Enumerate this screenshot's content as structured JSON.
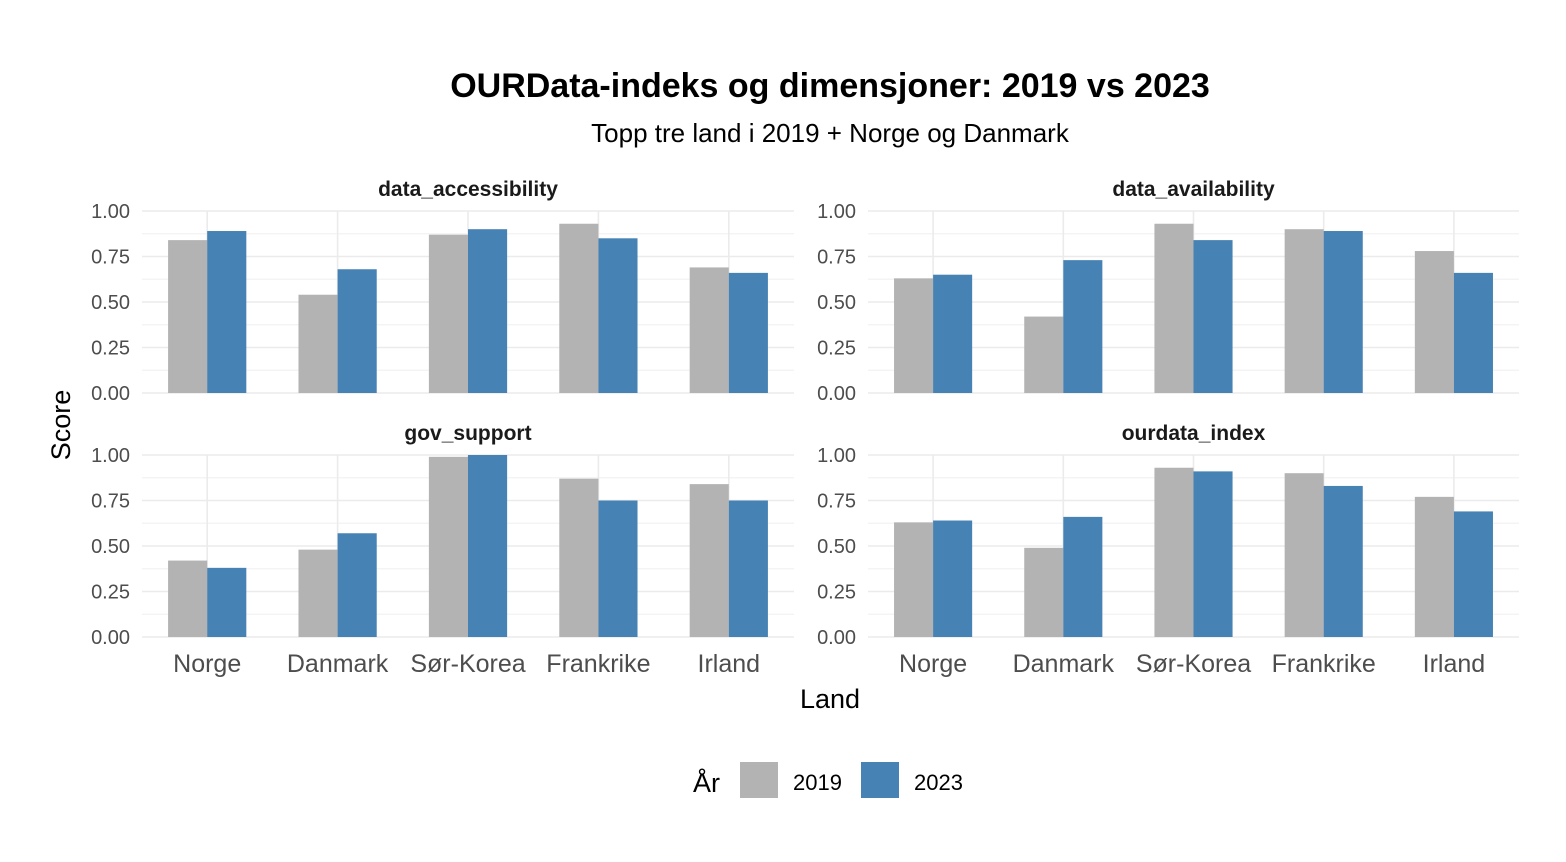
{
  "chart_data": {
    "type": "bar",
    "title": "OURData-indeks og dimensjoner: 2019 vs 2023",
    "subtitle": "Topp tre land i 2019 + Norge og Danmark",
    "xlabel": "Land",
    "ylabel": "Score",
    "ylim": [
      0,
      1
    ],
    "yticks": [
      "0.00",
      "0.25",
      "0.50",
      "0.75",
      "1.00"
    ],
    "categories": [
      "Norge",
      "Danmark",
      "Sør-Korea",
      "Frankrike",
      "Irland"
    ],
    "legend": {
      "title": "År",
      "position": "bottom"
    },
    "colors": {
      "2019": "#b3b3b3",
      "2023": "#4682b4"
    },
    "grid": true,
    "facets": [
      {
        "label": "data_accessibility",
        "series": [
          {
            "name": "2019",
            "values": [
              0.84,
              0.54,
              0.87,
              0.93,
              0.69
            ]
          },
          {
            "name": "2023",
            "values": [
              0.89,
              0.68,
              0.9,
              0.85,
              0.66
            ]
          }
        ]
      },
      {
        "label": "data_availability",
        "series": [
          {
            "name": "2019",
            "values": [
              0.63,
              0.42,
              0.93,
              0.9,
              0.78
            ]
          },
          {
            "name": "2023",
            "values": [
              0.65,
              0.73,
              0.84,
              0.89,
              0.66
            ]
          }
        ]
      },
      {
        "label": "gov_support",
        "series": [
          {
            "name": "2019",
            "values": [
              0.42,
              0.48,
              0.99,
              0.87,
              0.84
            ]
          },
          {
            "name": "2023",
            "values": [
              0.38,
              0.57,
              1.0,
              0.75,
              0.75
            ]
          }
        ]
      },
      {
        "label": "ourdata_index",
        "series": [
          {
            "name": "2019",
            "values": [
              0.63,
              0.49,
              0.93,
              0.9,
              0.77
            ]
          },
          {
            "name": "2023",
            "values": [
              0.64,
              0.66,
              0.91,
              0.83,
              0.69
            ]
          }
        ]
      }
    ]
  }
}
